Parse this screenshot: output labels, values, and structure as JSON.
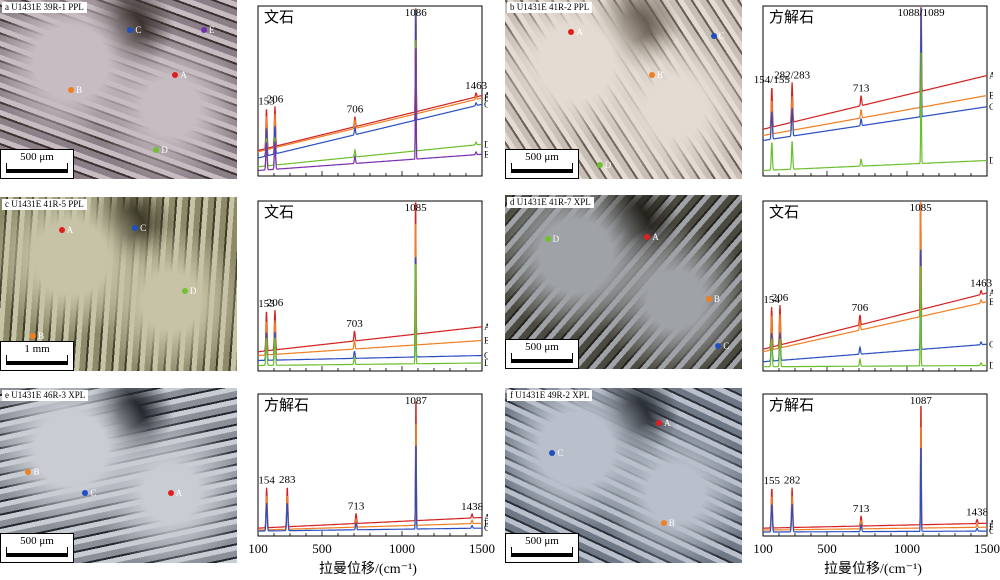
{
  "panels": [
    {
      "id": "a",
      "photo_label": "a  U1431E 39R-1 PPL",
      "scale_text": "500 μm",
      "photo_colors": [
        "#8a7f86",
        "#c8bcc3",
        "#3b3230"
      ],
      "points": [
        {
          "label": "A",
          "color": "#e02020"
        },
        {
          "label": "B",
          "color": "#f07f20"
        },
        {
          "label": "C",
          "color": "#2050c0"
        },
        {
          "label": "D",
          "color": "#70c030"
        },
        {
          "label": "E",
          "color": "#7030b0"
        }
      ],
      "chart_data": {
        "type": "line",
        "mineral": "文石",
        "xlim": [
          100,
          1500
        ],
        "xticks": [],
        "xticklabels": [],
        "peaks": [
          {
            "x": 153,
            "label": "153"
          },
          {
            "x": 206,
            "label": "206"
          },
          {
            "x": 706,
            "label": "706"
          },
          {
            "x": 1086,
            "label": "1086"
          },
          {
            "x": 1463,
            "label": "1463"
          }
        ],
        "series": [
          {
            "name": "A",
            "color": "#d42020",
            "start": 0.18,
            "end": 0.62
          },
          {
            "name": "B",
            "color": "#ee7f22",
            "start": 0.17,
            "end": 0.6
          },
          {
            "name": "C",
            "color": "#2a4fc0",
            "start": 0.12,
            "end": 0.55
          },
          {
            "name": "D",
            "color": "#6cbf2c",
            "start": 0.05,
            "end": 0.23
          },
          {
            "name": "E",
            "color": "#7a2eb0",
            "start": 0.02,
            "end": 0.15
          }
        ]
      }
    },
    {
      "id": "b",
      "photo_label": "b  U1431E 41R-2 PPL",
      "scale_text": "500 μm",
      "photo_colors": [
        "#c7beb4",
        "#e4dcd2",
        "#6a5e54"
      ],
      "points": [
        {
          "label": "A",
          "color": "#e02020"
        },
        {
          "label": "B",
          "color": "#f07f20"
        },
        {
          "label": "C",
          "color": "#2050c0"
        },
        {
          "label": "D",
          "color": "#70c030"
        }
      ],
      "chart_data": {
        "type": "line",
        "mineral": "方解石",
        "xlim": [
          100,
          1500
        ],
        "xticks": [],
        "xticklabels": [],
        "peaks": [
          {
            "x": 155,
            "label": "154/155"
          },
          {
            "x": 282,
            "label": "282/283"
          },
          {
            "x": 713,
            "label": "713"
          },
          {
            "x": 1088,
            "label": "1088/1089"
          }
        ],
        "series": [
          {
            "name": "A",
            "color": "#d42020",
            "start": 0.35,
            "end": 0.78
          },
          {
            "name": "B",
            "color": "#ee7f22",
            "start": 0.3,
            "end": 0.62
          },
          {
            "name": "C",
            "color": "#2a4fc0",
            "start": 0.26,
            "end": 0.53
          },
          {
            "name": "D",
            "color": "#6cbf2c",
            "start": 0.02,
            "end": 0.1
          }
        ]
      }
    },
    {
      "id": "c",
      "photo_label": "c  U1431E 41R-5 PPL",
      "scale_text": "1 mm",
      "photo_colors": [
        "#8d8a6a",
        "#c7c3a6",
        "#3d3a28"
      ],
      "points": [
        {
          "label": "A",
          "color": "#e02020"
        },
        {
          "label": "B",
          "color": "#f07f20"
        },
        {
          "label": "C",
          "color": "#2050c0"
        },
        {
          "label": "D",
          "color": "#70c030"
        }
      ],
      "chart_data": {
        "type": "line",
        "mineral": "文石",
        "xlim": [
          100,
          1500
        ],
        "xticks": [],
        "xticklabels": [],
        "peaks": [
          {
            "x": 153,
            "label": "153"
          },
          {
            "x": 206,
            "label": "206"
          },
          {
            "x": 703,
            "label": "703"
          },
          {
            "x": 1085,
            "label": "1085"
          }
        ],
        "series": [
          {
            "name": "A",
            "color": "#d42020",
            "start": 0.13,
            "end": 0.33
          },
          {
            "name": "B",
            "color": "#ee7f22",
            "start": 0.1,
            "end": 0.22
          },
          {
            "name": "C",
            "color": "#2a4fc0",
            "start": 0.06,
            "end": 0.1
          },
          {
            "name": "D",
            "color": "#6cbf2c",
            "start": 0.02,
            "end": 0.04
          }
        ]
      }
    },
    {
      "id": "d",
      "photo_label": "d  U1431E 41R-7 XPL",
      "scale_text": "500 μm",
      "photo_colors": [
        "#4b4a40",
        "#9fa2a6",
        "#24221c"
      ],
      "points": [
        {
          "label": "A",
          "color": "#e02020"
        },
        {
          "label": "B",
          "color": "#f07f20"
        },
        {
          "label": "C",
          "color": "#2050c0"
        },
        {
          "label": "D",
          "color": "#70c030"
        }
      ],
      "chart_data": {
        "type": "line",
        "mineral": "文石",
        "xlim": [
          100,
          1500
        ],
        "xticks": [],
        "xticklabels": [],
        "peaks": [
          {
            "x": 154,
            "label": "154"
          },
          {
            "x": 206,
            "label": "206"
          },
          {
            "x": 706,
            "label": "706"
          },
          {
            "x": 1085,
            "label": "1085"
          },
          {
            "x": 1463,
            "label": "1463"
          }
        ],
        "series": [
          {
            "name": "A",
            "color": "#d42020",
            "start": 0.15,
            "end": 0.6
          },
          {
            "name": "B",
            "color": "#ee7f22",
            "start": 0.13,
            "end": 0.53
          },
          {
            "name": "C",
            "color": "#2a4fc0",
            "start": 0.05,
            "end": 0.19
          },
          {
            "name": "D",
            "color": "#6cbf2c",
            "start": 0.01,
            "end": 0.02
          }
        ]
      }
    },
    {
      "id": "e",
      "photo_label": "e  U1431E 46R-3 XPL",
      "scale_text": "500 μm",
      "photo_colors": [
        "#8a8f98",
        "#c8ccd3",
        "#24272e"
      ],
      "points": [
        {
          "label": "A",
          "color": "#e02020"
        },
        {
          "label": "B",
          "color": "#f07f20"
        },
        {
          "label": "C",
          "color": "#2050c0"
        }
      ],
      "chart_data": {
        "type": "line",
        "mineral": "方解石",
        "xlim": [
          100,
          1500
        ],
        "xticks": [
          100,
          500,
          1000,
          1500
        ],
        "xticklabels": [
          "100",
          "500",
          "1000",
          "1500"
        ],
        "xlabel": "拉曼位移/(cm⁻¹)",
        "peaks": [
          {
            "x": 154,
            "label": "154"
          },
          {
            "x": 283,
            "label": "283"
          },
          {
            "x": 713,
            "label": "713"
          },
          {
            "x": 1087,
            "label": "1087"
          },
          {
            "x": 1438,
            "label": "1438"
          }
        ],
        "series": [
          {
            "name": "A",
            "color": "#d42020",
            "start": 0.05,
            "end": 0.16
          },
          {
            "name": "B",
            "color": "#ee7f22",
            "start": 0.03,
            "end": 0.1
          },
          {
            "name": "C",
            "color": "#2a4fc0",
            "start": 0.02,
            "end": 0.05
          }
        ]
      }
    },
    {
      "id": "f",
      "photo_label": "f  U1431E 49R-2 XPL",
      "scale_text": "500 μm",
      "photo_colors": [
        "#6f7886",
        "#b9c0cb",
        "#2a2e36"
      ],
      "points": [
        {
          "label": "A",
          "color": "#e02020"
        },
        {
          "label": "B",
          "color": "#f07f20"
        },
        {
          "label": "C",
          "color": "#2050c0"
        }
      ],
      "chart_data": {
        "type": "line",
        "mineral": "方解石",
        "xlim": [
          100,
          1500
        ],
        "xticks": [
          100,
          500,
          1000,
          1500
        ],
        "xticklabels": [
          "100",
          "500",
          "1000",
          "1500"
        ],
        "xlabel": "拉曼位移/(cm⁻¹)",
        "peaks": [
          {
            "x": 155,
            "label": "155"
          },
          {
            "x": 282,
            "label": "282"
          },
          {
            "x": 713,
            "label": "713"
          },
          {
            "x": 1087,
            "label": "1087"
          },
          {
            "x": 1438,
            "label": "1438"
          }
        ],
        "series": [
          {
            "name": "A",
            "color": "#d42020",
            "start": 0.05,
            "end": 0.1
          },
          {
            "name": "B",
            "color": "#ee7f22",
            "start": 0.03,
            "end": 0.06
          },
          {
            "name": "C",
            "color": "#2a4fc0",
            "start": 0.01,
            "end": 0.02
          }
        ]
      }
    }
  ]
}
